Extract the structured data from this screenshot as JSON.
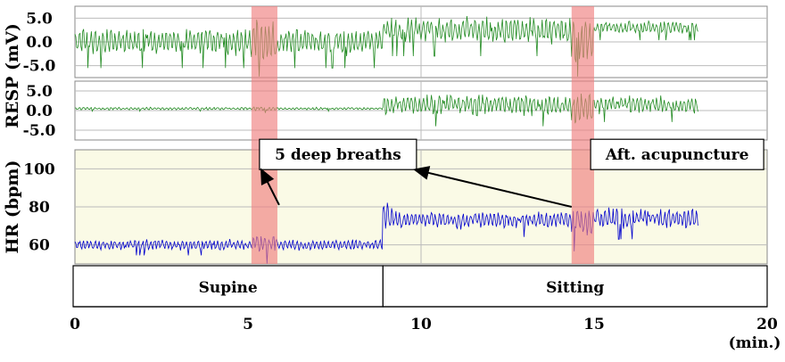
{
  "chart_data": {
    "type": "line",
    "x_axis": {
      "label": "(min.)",
      "range": [
        0,
        20
      ],
      "ticks": [
        0,
        5,
        10,
        15,
        20
      ]
    },
    "highlight_bands": [
      {
        "x_start": 5.1,
        "x_end": 5.85,
        "color": "#f08080"
      },
      {
        "x_start": 14.35,
        "x_end": 15.0,
        "color": "#f08080"
      }
    ],
    "posture_bar": [
      {
        "label": "Supine",
        "x_start": 0,
        "x_end": 8.9
      },
      {
        "label": "Sitting",
        "x_start": 8.9,
        "x_end": 20
      }
    ],
    "panels": [
      {
        "id": "resp1",
        "ylabel": "RESP (mV)",
        "ylim": [
          -7.5,
          7.5
        ],
        "ticks": [
          "5.0",
          "0.0",
          "-5.0"
        ],
        "tick_values": [
          5,
          0,
          -5
        ],
        "color": "#228b22",
        "background": "#ffffff",
        "x_data_range": [
          0,
          18.0
        ],
        "segments": [
          {
            "x": [
              0,
              5.1
            ],
            "center": 0.0,
            "amplitude": 2.5
          },
          {
            "x": [
              5.1,
              5.85
            ],
            "center": 0.0,
            "amplitude": 4.5
          },
          {
            "x": [
              5.85,
              8.9
            ],
            "center": 0.0,
            "amplitude": 2.5
          },
          {
            "x": [
              8.9,
              14.35
            ],
            "center": 2.5,
            "amplitude": 2.5
          },
          {
            "x": [
              14.35,
              15.0
            ],
            "center": 0.0,
            "amplitude": 4.5
          },
          {
            "x": [
              15.0,
              18.0
            ],
            "center": 3.0,
            "amplitude": 1.2
          }
        ]
      },
      {
        "id": "resp2",
        "ylabel": "",
        "ylim": [
          -7.5,
          7.5
        ],
        "ticks": [
          "5.0",
          "0.0",
          "-5.0"
        ],
        "tick_values": [
          5,
          0,
          -5
        ],
        "color": "#228b22",
        "background": "#ffffff",
        "x_data_range": [
          0,
          18.0
        ],
        "segments": [
          {
            "x": [
              0,
              5.1
            ],
            "center": 0.5,
            "amplitude": 0.3
          },
          {
            "x": [
              5.1,
              5.85
            ],
            "center": 0.5,
            "amplitude": 0.5
          },
          {
            "x": [
              5.85,
              8.9
            ],
            "center": 0.5,
            "amplitude": 0.3
          },
          {
            "x": [
              8.9,
              14.35
            ],
            "center": 1.5,
            "amplitude": 2.5
          },
          {
            "x": [
              14.35,
              15.0
            ],
            "center": 0.0,
            "amplitude": 4.0
          },
          {
            "x": [
              15.0,
              18.0
            ],
            "center": 1.5,
            "amplitude": 2.0
          }
        ]
      },
      {
        "id": "hr",
        "ylabel": "HR (bpm)",
        "ylim": [
          50,
          110
        ],
        "ticks": [
          "100",
          "80",
          "60"
        ],
        "tick_values": [
          100,
          80,
          60
        ],
        "color": "#0000cd",
        "background": "#fafae6",
        "x_data_range": [
          0,
          18.0
        ],
        "segments": [
          {
            "x": [
              0,
              5.1
            ],
            "center": 60,
            "amplitude": 2.5
          },
          {
            "x": [
              5.1,
              5.85
            ],
            "center": 61,
            "amplitude": 5
          },
          {
            "x": [
              5.85,
              8.9
            ],
            "center": 60,
            "amplitude": 2.5
          },
          {
            "x": [
              8.9,
              9.2
            ],
            "center": 75,
            "amplitude": 8
          },
          {
            "x": [
              9.2,
              14.35
            ],
            "center": 73,
            "amplitude": 4
          },
          {
            "x": [
              14.35,
              15.0
            ],
            "center": 72,
            "amplitude": 7
          },
          {
            "x": [
              15.0,
              18.0
            ],
            "center": 74,
            "amplitude": 5
          }
        ]
      }
    ],
    "annotations": [
      {
        "text": "5 deep breaths",
        "anchor_x": 7.6,
        "anchor_y": 101,
        "arrows_to": [
          [
            5.9,
            81
          ],
          [
            14.35,
            80
          ]
        ]
      },
      {
        "text": "Aft. acupuncture",
        "anchor_x": 17.4,
        "anchor_y": 101
      }
    ]
  }
}
